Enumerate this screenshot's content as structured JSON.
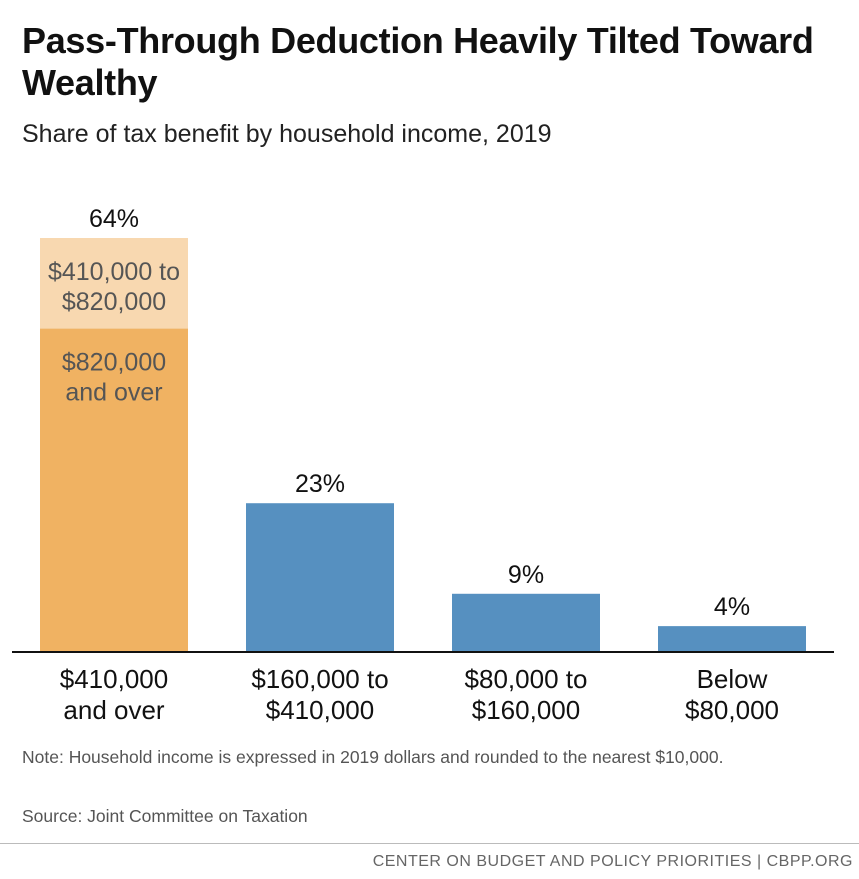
{
  "title": "Pass-Through Deduction Heavily Tilted Toward Wealthy",
  "subtitle": "Share of tax benefit by household income, 2019",
  "note": "Note: Household income is expressed in 2019 dollars and rounded to the nearest $10,000.",
  "source": "Source: Joint Committee on Taxation",
  "footer": "CENTER ON BUDGET AND POLICY PRIORITIES | CBPP.ORG",
  "chart_data": {
    "type": "bar",
    "stacked": true,
    "categories": [
      [
        "$410,000",
        "and over"
      ],
      [
        "$160,000 to",
        "$410,000"
      ],
      [
        "$80,000 to",
        "$160,000"
      ],
      [
        "Below",
        "$80,000"
      ]
    ],
    "values": [
      64,
      23,
      9,
      4
    ],
    "value_labels": [
      "64%",
      "23%",
      "9%",
      "4%"
    ],
    "segments": [
      {
        "category_index": 0,
        "label": [
          "$820,000",
          "and over"
        ],
        "value": 50,
        "color": "#f0b262"
      },
      {
        "category_index": 0,
        "label": [
          "$410,000 to",
          "$820,000"
        ],
        "value": 14,
        "color": "#f8d8b0"
      }
    ],
    "bar_color": "#5690c0",
    "ylim": [
      0,
      64
    ],
    "grid": false,
    "legend": "none"
  }
}
